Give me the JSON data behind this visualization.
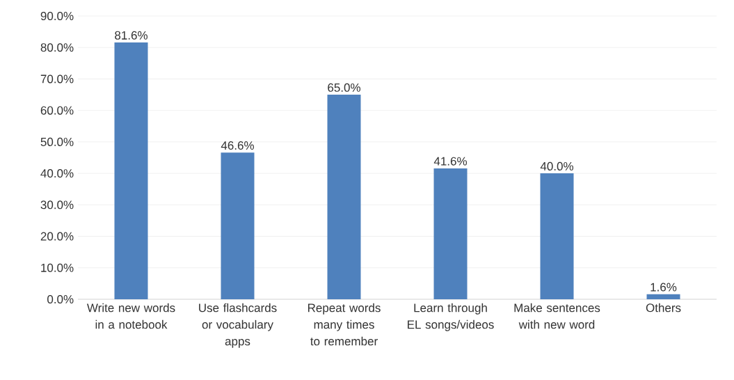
{
  "chart_data": {
    "type": "bar",
    "categories": [
      "Write new words in a notebook",
      "Use flashcards or vocabulary apps",
      "Repeat words many times to remember",
      "Learn through EL songs/videos",
      "Make sentences with new word",
      "Others"
    ],
    "values": [
      81.6,
      46.6,
      65.0,
      41.6,
      40.0,
      1.6
    ],
    "value_labels": [
      "81.6%",
      "46.6%",
      "65.0%",
      "41.6%",
      "40.0%",
      "1.6%"
    ],
    "color": "#4f81bd",
    "ylim": [
      0,
      90
    ],
    "yticks": [
      {
        "value": 0,
        "label": "0.0%"
      },
      {
        "value": 10,
        "label": "10.0%"
      },
      {
        "value": 20,
        "label": "20.0%"
      },
      {
        "value": 30,
        "label": "30.0%"
      },
      {
        "value": 40,
        "label": "40.0%"
      },
      {
        "value": 50,
        "label": "50.0%"
      },
      {
        "value": 60,
        "label": "60.0%"
      },
      {
        "value": 70,
        "label": "70.0%"
      },
      {
        "value": 80,
        "label": "80.0%"
      },
      {
        "value": 90,
        "label": "90.0%"
      }
    ],
    "grid": "y"
  }
}
